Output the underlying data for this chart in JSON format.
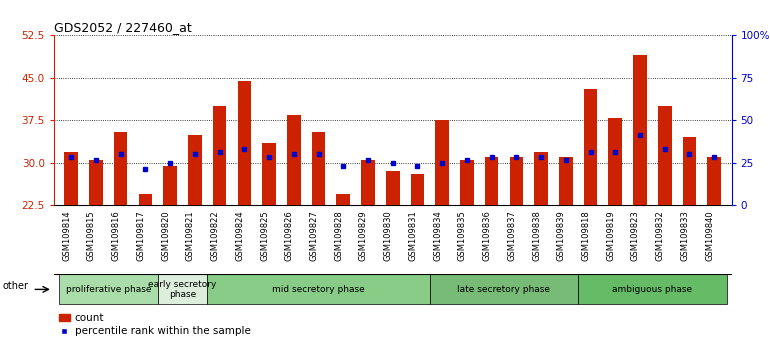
{
  "title": "GDS2052 / 227460_at",
  "samples": [
    "GSM109814",
    "GSM109815",
    "GSM109816",
    "GSM109817",
    "GSM109820",
    "GSM109821",
    "GSM109822",
    "GSM109824",
    "GSM109825",
    "GSM109826",
    "GSM109827",
    "GSM109828",
    "GSM109829",
    "GSM109830",
    "GSM109831",
    "GSM109834",
    "GSM109835",
    "GSM109836",
    "GSM109837",
    "GSM109838",
    "GSM109839",
    "GSM109818",
    "GSM109819",
    "GSM109823",
    "GSM109832",
    "GSM109833",
    "GSM109840"
  ],
  "bar_heights": [
    32.0,
    30.5,
    35.5,
    24.5,
    29.5,
    35.0,
    40.0,
    44.5,
    33.5,
    38.5,
    35.5,
    24.5,
    30.5,
    28.5,
    28.0,
    37.5,
    30.5,
    31.0,
    31.0,
    32.0,
    31.0,
    43.0,
    38.0,
    49.0,
    40.0,
    34.5,
    31.0
  ],
  "percentile_ranks": [
    31.0,
    30.5,
    31.5,
    29.0,
    30.0,
    31.5,
    32.0,
    32.5,
    31.0,
    31.5,
    31.5,
    29.5,
    30.5,
    30.0,
    29.5,
    30.0,
    30.5,
    31.0,
    31.0,
    31.0,
    30.5,
    32.0,
    32.0,
    35.0,
    32.5,
    31.5,
    31.0
  ],
  "phases": [
    {
      "name": "proliferative phase",
      "start": 0,
      "end": 4,
      "color": "#aaddaa"
    },
    {
      "name": "early secretory\nphase",
      "start": 4,
      "end": 6,
      "color": "#ddeedd"
    },
    {
      "name": "mid secretory phase",
      "start": 6,
      "end": 15,
      "color": "#88cc88"
    },
    {
      "name": "late secretory phase",
      "start": 15,
      "end": 21,
      "color": "#77bb77"
    },
    {
      "name": "ambiguous phase",
      "start": 21,
      "end": 27,
      "color": "#66bb66"
    }
  ],
  "ymin": 22.5,
  "ymax": 52.5,
  "yticks_left": [
    22.5,
    30.0,
    37.5,
    45.0,
    52.5
  ],
  "yticks_right_vals": [
    "0",
    "25",
    "50",
    "75",
    "100%"
  ],
  "yticks_right_pos": [
    22.5,
    30.0,
    37.5,
    45.0,
    52.5
  ],
  "bar_color": "#cc2200",
  "percentile_color": "#0000cc",
  "background_color": "#ffffff",
  "bar_bottom": 22.5,
  "bar_width": 0.55
}
